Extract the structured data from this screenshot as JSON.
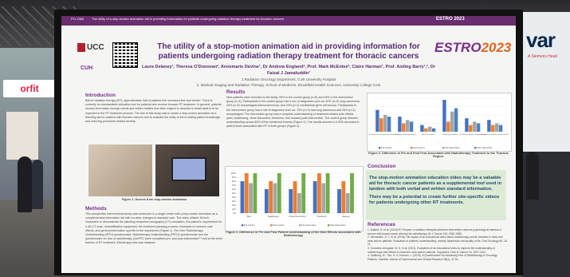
{
  "venue": {
    "left_sign": "orfit",
    "right_sign": "var",
    "right_sub": "A Siemens Healt"
  },
  "poster": {
    "topbar": {
      "code": "PO-1366",
      "text": "The utility of a stop-motion animation aid in providing information for patients undergoing radiation therapy treatment for thoracic cancers",
      "estro_small": "ESTRO 2023"
    },
    "logos": {
      "ucc": "UCC",
      "cuh": "CUH",
      "estro": "ESTRO",
      "estro_year": "2023"
    },
    "title": "The utility of a stop-motion animation aid in providing information for patients undergoing radiation therapy treatment for thoracic cancers",
    "authors": "Laura Delaney¹, Theresa O'Donovan², Annemarie Devine¹, Dr Andrew England², Prof. Mark McEntee², Claire Harman¹, Prof. Aisling Barry¹,², Dr Faisal J Jamaluddin¹",
    "affil1": "1.Radiation Oncology Department, Cork University Hospital",
    "affil2": "2. Medical Imaging and Radiation Therapy, School of Medicine, Brookfield Health Sciences, University College Cork",
    "introduction": {
      "heading": "Introduction",
      "text": "Before radiation therapy (RT), approximately half of patients feel increased fear and stress¹. There is currently no standardised education tool for patients who receive thoracic RT treatment. In general, patients receive information through verbal and written leaflets that often neglect to describe in detail what is to be expected in the RT treatment process. The aim of this study was to create a stop-motion animation as a teaching aid for patients with thoracic cancers and to evaluate the utility of the in-setting patient knowledge and reducing procedure-related anxiety."
    },
    "figure1_caption": "Figure 1. Scenes from stop-motion animation",
    "methods": {
      "heading": "Methods",
      "text": "This prospective interventional study was conducted in a single centre with a stop-motion animation as a complementary information aid with no other changes to standard care. The video utilised 18-inch characters to demonstrate the planning computed tomography (CT) simulation, the patient's requirement for a 4D-CT scan, immobilisation equipment, the treatment planning process, examples of common side effects, and general information specific to the department (Figure 1). The Inter Radiotherapy Understanding (IRTU) questionnaire, Radiotherapy Understanding (FRTU) questionnaire and the questionnaire for fear of radiotherapy (QoFRT) were completed pre- and post-intervention²,³ and at the tenth fraction of RT treatment. Ethical approval was obtained."
    },
    "results": {
      "heading": "Results",
      "text": "Nine patients were recruited to the study, 55% in the control group (n=5) and 45% in the intervention group (n=4). Participants in the control group had a mix of diagnoses such as: 40% (n=2) lung carcinoma, 40% (n=2) oesophageal adenocarcinoma, and 20% (n=1) mediastinal germ cell tumour. Participants in the intervention group had a mix of diagnoses such as: 75% (n=3) had lung carcinoma and 25% (n=1) oesophageal. The intervention group had a complete understanding of treatment-related side effects (skin, swallowing, chest discomfort, tiredness, and nausea) post-intervention. The control group showed understanding across 80% of the mentioned themes (Figure 2). The results showed a 0.30% decrease in patient fears associated with RT in both groups (Figure 3)."
    },
    "figure2_caption": "Figure 2. Difference in Pre and Post Patient Understanding of the Side Effects associated with Radiotherapy",
    "figure3_caption": "Figure 3. Difference in Pre and Post Fear Associated with Radiotherapy Treatment to the Thoracic Region.",
    "conclusion": {
      "heading": "Conclusion",
      "p1": "The stop-motion animation education video may be a valuable aid for thoracic cancer patients as a supplemental tool used in tandem with both verbal and written standard information.",
      "p2": "There may be a potential to create further site-specific videos for patients undergoing other RT treatments."
    },
    "references": {
      "heading": "References",
      "items": [
        "1. Halkett, G. et al. (2018) RT Prepare: a radiation therapist-delivered intervention reduces psychological distress in women with breast cancer referred for radiotherapy. Br J Cancer 118, 1549-1558.",
        "2. Hernandez, D. T. et al. (2016) The impact of an educational video about radiotherapy and its toxicities in head and neck cancer patients. Evaluation of patients' understanding, anxiety, depression and quality of life. Oral Oncology 60, 16-21.",
        "3. Gonzalez-Arrugada, M. G. et al. (2011). Evaluation of an educational video to improve the understanding of radiotherapy side effects in head and neck cancer patients. Supportive Care in Cancer 19, 1097-1104.",
        "4. Sahlberg, M., Tolo, H. & Johnson, L. (2019). A Questionnaire for Assessing Fear of Radiotherapy in Oncology Patients. Swedish Journal of Experimental and Clinical Research 38(1), 47-64."
      ]
    }
  },
  "chart_data": [
    {
      "type": "bar",
      "title": "",
      "categories": [
        "Skin",
        "Swallowing",
        "Chest Discomfort",
        "Tiredness",
        "Nausea"
      ],
      "series": [
        {
          "name": "Pre Control",
          "values": [
            80,
            60,
            60,
            80,
            60
          ],
          "color": "#4472c4"
        },
        {
          "name": "Post Control",
          "values": [
            100,
            80,
            80,
            100,
            80
          ],
          "color": "#ed7d31"
        },
        {
          "name": "Pre Intervention",
          "values": [
            75,
            75,
            50,
            75,
            50
          ],
          "color": "#a5a5a5"
        },
        {
          "name": "Post Intervention",
          "values": [
            100,
            100,
            100,
            100,
            100
          ],
          "color": "#70ad47"
        }
      ],
      "yticks": [
        "0%",
        "10%",
        "20%",
        "30%",
        "40%",
        "50%",
        "60%",
        "70%",
        "80%",
        "90%",
        "100%"
      ],
      "ylim": [
        0,
        100
      ]
    },
    {
      "type": "bar",
      "title": "",
      "categories": [
        "Feelings of anxiety and nervousness",
        "Endangered body functions",
        "Harm to children",
        "Medical procedures",
        "Permanent injuries of appearance",
        "Do you feel scared to receiving RT?"
      ],
      "series": [
        {
          "name": "Pre Control",
          "values": [
            1.3,
            0.9,
            0.4,
            1.9,
            0.8,
            0.7
          ],
          "color": "#4472c4"
        },
        {
          "name": "Post Control",
          "values": [
            0.8,
            0.5,
            0.2,
            0.6,
            0.4,
            0.4
          ],
          "color": "#ed7d31"
        },
        {
          "name": "Pre Intervention",
          "values": [
            1.0,
            0.7,
            0.3,
            1.2,
            0.6,
            0.5
          ],
          "color": "#a5a5a5"
        },
        {
          "name": "Post Intervention",
          "values": [
            0.9,
            0.6,
            0.2,
            1.4,
            0.5,
            0.4
          ],
          "color": "#4f81bd"
        }
      ],
      "ylim": [
        0,
        2
      ]
    }
  ]
}
